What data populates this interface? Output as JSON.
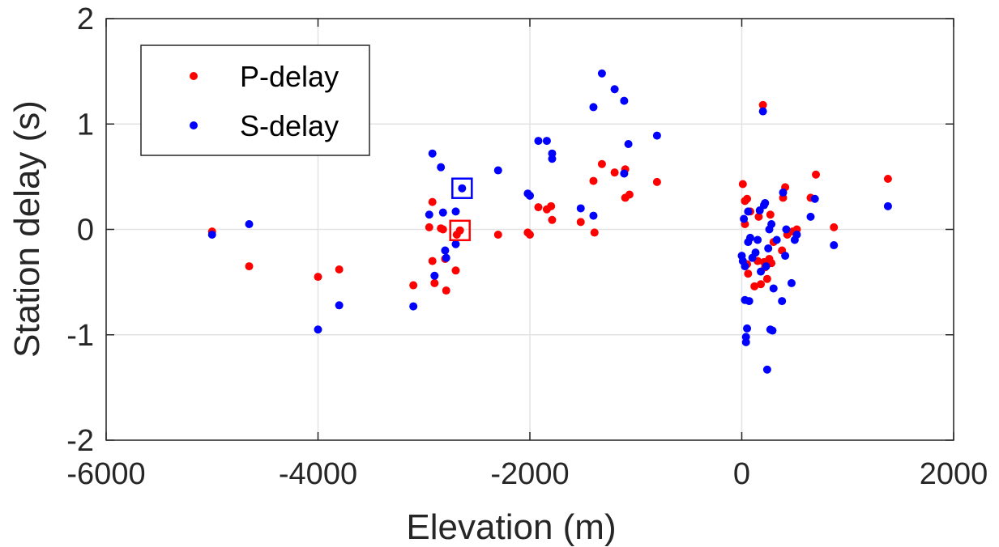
{
  "chart_data": {
    "type": "scatter",
    "title": "",
    "xlabel": "Elevation (m)",
    "ylabel": "Station delay (s)",
    "xlim": [
      -6000,
      2000
    ],
    "ylim": [
      -2,
      2
    ],
    "x_ticks": [
      "-6000",
      "-4000",
      "-2000",
      "0",
      "2000"
    ],
    "y_ticks": [
      "-2",
      "-1",
      "0",
      "1",
      "2"
    ],
    "grid": true,
    "legend_position": "top-left",
    "series": [
      {
        "name": "P-delay",
        "color": "#ff0000",
        "points": [
          [
            -5000,
            -0.02
          ],
          [
            -4650,
            -0.35
          ],
          [
            -4000,
            -0.45
          ],
          [
            -3800,
            -0.38
          ],
          [
            -3100,
            -0.53
          ],
          [
            -2950,
            0.02
          ],
          [
            -2920,
            0.26
          ],
          [
            -2920,
            -0.3
          ],
          [
            -2900,
            -0.51
          ],
          [
            -2840,
            0.01
          ],
          [
            -2820,
            0.0
          ],
          [
            -2800,
            -0.28
          ],
          [
            -2790,
            -0.58
          ],
          [
            -2700,
            -0.39
          ],
          [
            -2690,
            -0.05
          ],
          [
            -2660,
            -0.01
          ],
          [
            -2300,
            -0.05
          ],
          [
            -2020,
            -0.03
          ],
          [
            -2000,
            -0.05
          ],
          [
            -1920,
            0.21
          ],
          [
            -1840,
            0.19
          ],
          [
            -1800,
            0.22
          ],
          [
            -1790,
            0.09
          ],
          [
            -1520,
            0.07
          ],
          [
            -1400,
            0.46
          ],
          [
            -1390,
            -0.03
          ],
          [
            -1320,
            0.62
          ],
          [
            -1200,
            0.54
          ],
          [
            -1100,
            0.57
          ],
          [
            -1100,
            0.3
          ],
          [
            -1060,
            0.33
          ],
          [
            -800,
            0.45
          ],
          [
            10,
            0.43
          ],
          [
            30,
            0.05
          ],
          [
            30,
            0.27
          ],
          [
            50,
            0.29
          ],
          [
            50,
            -0.33
          ],
          [
            60,
            -0.42
          ],
          [
            80,
            0.17
          ],
          [
            120,
            -0.54
          ],
          [
            150,
            -0.3
          ],
          [
            160,
            0.12
          ],
          [
            180,
            -0.52
          ],
          [
            200,
            1.18
          ],
          [
            210,
            -0.31
          ],
          [
            220,
            -0.36
          ],
          [
            240,
            -0.47
          ],
          [
            260,
            -0.28
          ],
          [
            270,
            0.14
          ],
          [
            280,
            -0.32
          ],
          [
            300,
            -0.12
          ],
          [
            380,
            -0.2
          ],
          [
            390,
            0.3
          ],
          [
            410,
            0.4
          ],
          [
            430,
            -0.05
          ],
          [
            480,
            -0.02
          ],
          [
            520,
            0.0
          ],
          [
            650,
            0.3
          ],
          [
            700,
            0.52
          ],
          [
            870,
            0.02
          ],
          [
            1380,
            0.48
          ]
        ]
      },
      {
        "name": "S-delay",
        "color": "#0000ff",
        "points": [
          [
            -5000,
            -0.05
          ],
          [
            -4650,
            0.05
          ],
          [
            -4000,
            -0.95
          ],
          [
            -3800,
            -0.72
          ],
          [
            -3100,
            -0.73
          ],
          [
            -2950,
            0.14
          ],
          [
            -2920,
            0.72
          ],
          [
            -2900,
            -0.44
          ],
          [
            -2840,
            0.59
          ],
          [
            -2820,
            0.16
          ],
          [
            -2800,
            -0.2
          ],
          [
            -2790,
            -0.27
          ],
          [
            -2700,
            0.17
          ],
          [
            -2700,
            -0.14
          ],
          [
            -2640,
            0.39
          ],
          [
            -2300,
            0.56
          ],
          [
            -2020,
            0.34
          ],
          [
            -2000,
            0.32
          ],
          [
            -1920,
            0.84
          ],
          [
            -1840,
            0.84
          ],
          [
            -1790,
            0.72
          ],
          [
            -1790,
            0.67
          ],
          [
            -1520,
            0.2
          ],
          [
            -1400,
            1.16
          ],
          [
            -1400,
            0.13
          ],
          [
            -1320,
            1.48
          ],
          [
            -1200,
            1.33
          ],
          [
            -1110,
            1.22
          ],
          [
            -1110,
            0.53
          ],
          [
            -1070,
            0.81
          ],
          [
            -800,
            0.89
          ],
          [
            0,
            -0.25
          ],
          [
            10,
            -0.3
          ],
          [
            20,
            0.1
          ],
          [
            30,
            -0.35
          ],
          [
            30,
            -0.67
          ],
          [
            40,
            -1.02
          ],
          [
            40,
            -1.07
          ],
          [
            50,
            -0.94
          ],
          [
            60,
            0.17
          ],
          [
            60,
            -0.12
          ],
          [
            70,
            -0.68
          ],
          [
            80,
            -0.08
          ],
          [
            100,
            -0.27
          ],
          [
            130,
            -0.22
          ],
          [
            150,
            -0.1
          ],
          [
            170,
            0.18
          ],
          [
            180,
            -0.4
          ],
          [
            200,
            1.12
          ],
          [
            210,
            0.23
          ],
          [
            220,
            0.25
          ],
          [
            230,
            -0.35
          ],
          [
            240,
            -1.33
          ],
          [
            250,
            -0.18
          ],
          [
            260,
            0.0
          ],
          [
            270,
            -0.95
          ],
          [
            280,
            0.05
          ],
          [
            290,
            -0.96
          ],
          [
            300,
            -0.56
          ],
          [
            330,
            -0.1
          ],
          [
            380,
            -0.68
          ],
          [
            390,
            0.35
          ],
          [
            410,
            -0.25
          ],
          [
            420,
            0.0
          ],
          [
            470,
            -0.51
          ],
          [
            500,
            -0.1
          ],
          [
            520,
            -0.05
          ],
          [
            650,
            0.12
          ],
          [
            690,
            0.29
          ],
          [
            870,
            -0.15
          ],
          [
            1380,
            0.22
          ]
        ]
      }
    ],
    "highlight_boxes": [
      {
        "series": "S-delay",
        "x": -2640,
        "y": 0.39,
        "color": "#0000ff"
      },
      {
        "series": "P-delay",
        "x": -2660,
        "y": -0.01,
        "color": "#ff0000"
      }
    ]
  }
}
